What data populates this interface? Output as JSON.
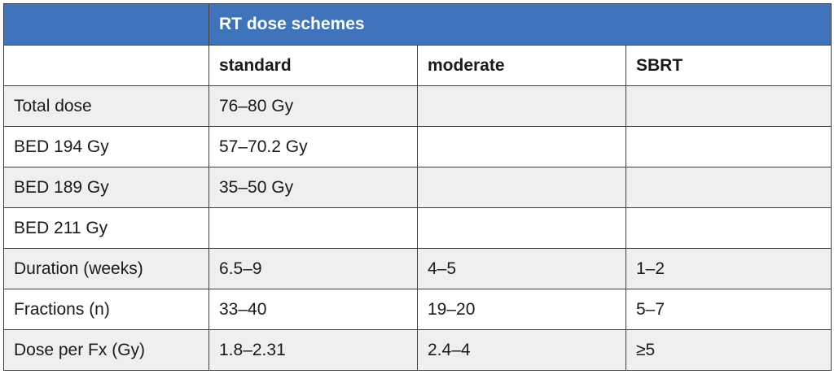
{
  "table": {
    "title": "RT dose schemes",
    "columns": [
      "standard",
      "moderate",
      "SBRT"
    ],
    "rows": [
      {
        "label": "Total dose",
        "cells": [
          "76–80 Gy",
          "",
          ""
        ]
      },
      {
        "label": "BED 194 Gy",
        "cells": [
          "57–70.2 Gy",
          "",
          ""
        ]
      },
      {
        "label": "BED 189 Gy",
        "cells": [
          "35–50 Gy",
          "",
          ""
        ]
      },
      {
        "label": "BED 211 Gy",
        "cells": [
          "",
          "",
          ""
        ]
      },
      {
        "label": "Duration (weeks)",
        "cells": [
          "6.5–9",
          "4–5",
          "1–2"
        ]
      },
      {
        "label": "Fractions (n)",
        "cells": [
          "33–40",
          "19–20",
          "5–7"
        ]
      },
      {
        "label": "Dose per Fx (Gy)",
        "cells": [
          "1.8–2.31",
          "2.4–4",
          "≥5"
        ]
      }
    ]
  },
  "colors": {
    "header_blue": "#3f74bc",
    "row_alt_gray": "#efefef",
    "border": "#3d3d3d"
  }
}
